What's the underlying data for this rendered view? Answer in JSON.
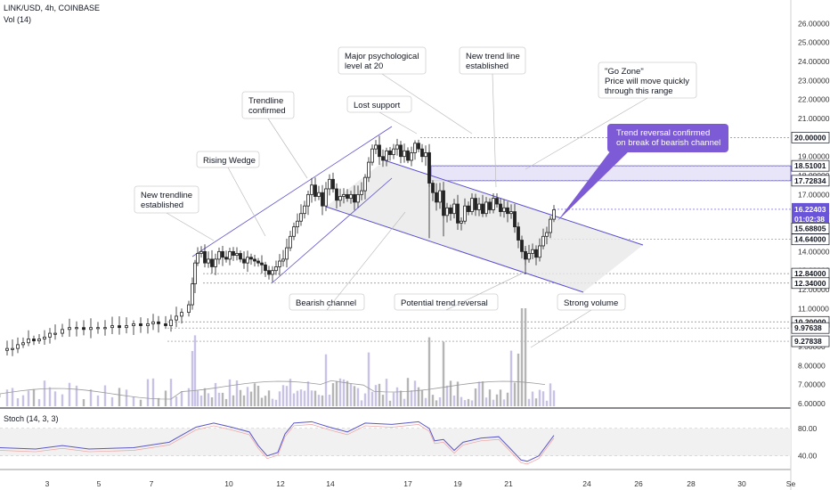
{
  "header": {
    "symbol_line": "LINK/USD, 4h, COINBASE",
    "volume_line": "Vol (14)"
  },
  "stoch": {
    "label": "Stoch (14, 3, 3)",
    "ticks": [
      "80.00",
      "40.00"
    ]
  },
  "colors": {
    "up": "#222222",
    "down": "#222222",
    "trend": "#5b4fcf",
    "callout": "#7e5bd6",
    "vol_up": "#c8c2e8",
    "vol_down": "#b5b5b5",
    "stoch": "#5b57c8",
    "grid": "#c8c8c8"
  },
  "annotations": [
    {
      "id": "new-trendline",
      "lines": [
        "New trendline",
        "established"
      ]
    },
    {
      "id": "rising-wedge",
      "lines": [
        "Rising Wedge"
      ]
    },
    {
      "id": "trendline-confirmed",
      "lines": [
        "Trendline",
        "confirmed"
      ]
    },
    {
      "id": "lost-support",
      "lines": [
        "Lost support"
      ]
    },
    {
      "id": "psych-level",
      "lines": [
        "Major psychological",
        "level at 20"
      ]
    },
    {
      "id": "new-trend-line",
      "lines": [
        "New trend line",
        "established"
      ]
    },
    {
      "id": "go-zone",
      "lines": [
        "\"Go Zone\"",
        "Price will move quickly",
        "through this range"
      ]
    },
    {
      "id": "bearish-channel",
      "lines": [
        "Bearish channel"
      ]
    },
    {
      "id": "potential-reversal",
      "lines": [
        "Potential trend reversal"
      ]
    },
    {
      "id": "strong-volume",
      "lines": [
        "Strong volume"
      ]
    },
    {
      "id": "trend-reversal",
      "lines": [
        "Trend reversal confirmed",
        "on break of bearish channel"
      ]
    }
  ],
  "chart_data": {
    "type": "candlestick",
    "price_axis_ticks": [
      6,
      7,
      8,
      9,
      10,
      11,
      12,
      13,
      14,
      15,
      16,
      17,
      18,
      19,
      20,
      21,
      22,
      23,
      24,
      25,
      26
    ],
    "price_tick_labels": [
      "6.00000",
      "7.00000",
      "8.00000",
      "9.00000",
      "10.00000",
      "11.00000",
      "12.00000",
      "13.00000",
      "14.00000",
      "15.00000",
      "16.00000",
      "17.00000",
      "18.00000",
      "19.00000",
      "20.00000",
      "21.00000",
      "22.00000",
      "23.00000",
      "24.00000",
      "25.00000",
      "26.00000"
    ],
    "x_tick_labels": [
      "3",
      "5",
      "7",
      "10",
      "12",
      "14",
      "17",
      "19",
      "21",
      "24",
      "26",
      "28",
      "30",
      "Se"
    ],
    "horizontal_levels": [
      {
        "value": 20.0,
        "label": "20.00000"
      },
      {
        "value": 18.51001,
        "label": "18.51001"
      },
      {
        "value": 17.72834,
        "label": "17.72834"
      },
      {
        "value": 14.64,
        "label": "14.64000"
      },
      {
        "value": 12.84,
        "label": "12.84000"
      },
      {
        "value": 12.34,
        "label": "12.34000"
      },
      {
        "value": 10.3,
        "label": "10.30000"
      },
      {
        "value": 9.97638,
        "label": "9.97638"
      },
      {
        "value": 9.27838,
        "label": "9.27838"
      }
    ],
    "current_price": {
      "value": 16.22403,
      "label": "16.22403",
      "countdown": "01:02:38"
    },
    "secondary_price": {
      "value": 15.68805,
      "label": "15.68805"
    },
    "go_zone": [
      17.72834,
      18.51001
    ],
    "close_path": [
      [
        0,
        8.8
      ],
      [
        8,
        8.9
      ],
      [
        14,
        8.9
      ],
      [
        20,
        9.1
      ],
      [
        26,
        9.2
      ],
      [
        32,
        9.4
      ],
      [
        38,
        9.3
      ],
      [
        44,
        9.4
      ],
      [
        50,
        9.5
      ],
      [
        56,
        9.7
      ],
      [
        62,
        9.7
      ],
      [
        70,
        9.9
      ],
      [
        78,
        10.0
      ],
      [
        86,
        10.0
      ],
      [
        94,
        9.9
      ],
      [
        102,
        10.0
      ],
      [
        110,
        10.0
      ],
      [
        118,
        10.0
      ],
      [
        126,
        10.1
      ],
      [
        134,
        10.0
      ],
      [
        142,
        10.1
      ],
      [
        150,
        10.2
      ],
      [
        158,
        10.1
      ],
      [
        166,
        10.2
      ],
      [
        172,
        10.3
      ],
      [
        178,
        10.2
      ],
      [
        186,
        10.1
      ],
      [
        192,
        10.4
      ],
      [
        198,
        10.6
      ],
      [
        204,
        10.8
      ],
      [
        212,
        11.2
      ],
      [
        216,
        12.3
      ],
      [
        219,
        13.4
      ],
      [
        222,
        13.9
      ],
      [
        226,
        14.0
      ],
      [
        230,
        13.4
      ],
      [
        234,
        13.6
      ],
      [
        238,
        13.2
      ],
      [
        242,
        13.6
      ],
      [
        246,
        14.0
      ],
      [
        250,
        13.7
      ],
      [
        254,
        13.6
      ],
      [
        258,
        14.0
      ],
      [
        262,
        13.8
      ],
      [
        266,
        13.9
      ],
      [
        270,
        13.6
      ],
      [
        274,
        13.4
      ],
      [
        278,
        13.7
      ],
      [
        282,
        13.6
      ],
      [
        286,
        13.5
      ],
      [
        290,
        13.4
      ],
      [
        294,
        13.3
      ],
      [
        298,
        13.0
      ],
      [
        302,
        12.8
      ],
      [
        306,
        13.0
      ],
      [
        310,
        13.2
      ],
      [
        314,
        13.5
      ],
      [
        318,
        13.6
      ],
      [
        322,
        14.2
      ],
      [
        326,
        14.8
      ],
      [
        330,
        15.3
      ],
      [
        334,
        15.6
      ],
      [
        338,
        16.0
      ],
      [
        342,
        16.4
      ],
      [
        346,
        17.0
      ],
      [
        350,
        17.5
      ],
      [
        354,
        16.9
      ],
      [
        358,
        17.1
      ],
      [
        362,
        16.4
      ],
      [
        366,
        17.3
      ],
      [
        370,
        17.8
      ],
      [
        374,
        17.3
      ],
      [
        378,
        16.7
      ],
      [
        382,
        16.9
      ],
      [
        386,
        17.0
      ],
      [
        390,
        16.8
      ],
      [
        394,
        17.0
      ],
      [
        398,
        16.6
      ],
      [
        402,
        17.0
      ],
      [
        406,
        17.2
      ],
      [
        410,
        17.9
      ],
      [
        414,
        18.7
      ],
      [
        418,
        19.4
      ],
      [
        422,
        19.6
      ],
      [
        426,
        19.0
      ],
      [
        430,
        18.8
      ],
      [
        434,
        19.3
      ],
      [
        438,
        19.1
      ],
      [
        442,
        19.4
      ],
      [
        446,
        19.6
      ],
      [
        450,
        19.0
      ],
      [
        454,
        19.3
      ],
      [
        458,
        18.8
      ],
      [
        462,
        19.2
      ],
      [
        466,
        19.7
      ],
      [
        470,
        19.4
      ],
      [
        474,
        19.0
      ],
      [
        478,
        19.2
      ],
      [
        482,
        17.6
      ],
      [
        486,
        17.1
      ],
      [
        490,
        16.6
      ],
      [
        494,
        17.2
      ],
      [
        498,
        15.9
      ],
      [
        502,
        16.3
      ],
      [
        506,
        16.0
      ],
      [
        510,
        16.5
      ],
      [
        514,
        15.5
      ],
      [
        518,
        15.6
      ],
      [
        522,
        16.4
      ],
      [
        526,
        16.1
      ],
      [
        530,
        16.8
      ],
      [
        534,
        16.2
      ],
      [
        538,
        16.5
      ],
      [
        542,
        16.0
      ],
      [
        546,
        16.6
      ],
      [
        550,
        16.2
      ],
      [
        554,
        16.8
      ],
      [
        558,
        16.5
      ],
      [
        562,
        16.1
      ],
      [
        566,
        16.3
      ],
      [
        570,
        16.0
      ],
      [
        574,
        16.1
      ],
      [
        578,
        15.3
      ],
      [
        582,
        14.6
      ],
      [
        586,
        14.0
      ],
      [
        590,
        13.6
      ],
      [
        594,
        13.9
      ],
      [
        598,
        14.1
      ],
      [
        602,
        13.7
      ],
      [
        606,
        14.3
      ],
      [
        610,
        14.8
      ],
      [
        614,
        15.0
      ],
      [
        618,
        15.7
      ],
      [
        622,
        16.2
      ]
    ],
    "stoch_path": [
      [
        0,
        52
      ],
      [
        40,
        50
      ],
      [
        70,
        55
      ],
      [
        100,
        50
      ],
      [
        150,
        52
      ],
      [
        190,
        60
      ],
      [
        220,
        82
      ],
      [
        240,
        88
      ],
      [
        260,
        82
      ],
      [
        280,
        75
      ],
      [
        290,
        55
      ],
      [
        300,
        40
      ],
      [
        312,
        45
      ],
      [
        320,
        72
      ],
      [
        330,
        88
      ],
      [
        350,
        90
      ],
      [
        370,
        82
      ],
      [
        390,
        75
      ],
      [
        410,
        88
      ],
      [
        440,
        86
      ],
      [
        470,
        90
      ],
      [
        482,
        80
      ],
      [
        488,
        62
      ],
      [
        498,
        64
      ],
      [
        510,
        48
      ],
      [
        520,
        60
      ],
      [
        540,
        66
      ],
      [
        560,
        68
      ],
      [
        572,
        52
      ],
      [
        585,
        34
      ],
      [
        592,
        32
      ],
      [
        605,
        40
      ],
      [
        622,
        70
      ]
    ]
  }
}
